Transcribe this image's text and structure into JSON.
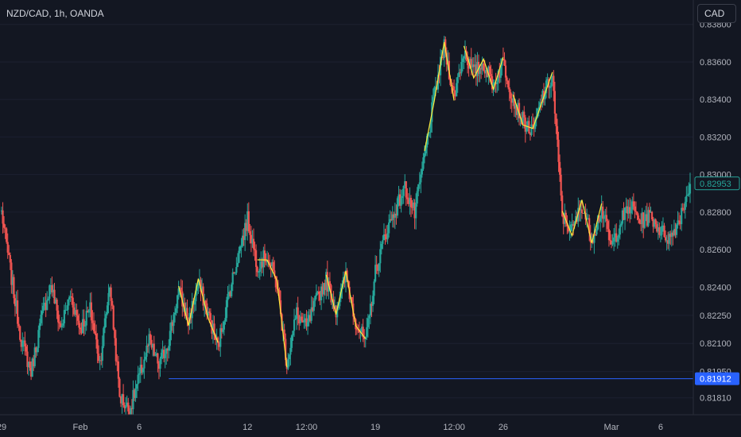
{
  "chart_data": {
    "type": "candlestick",
    "title": "NZD/CAD, 1h, OANDA",
    "currency": "CAD",
    "ylim": [
      0.8172,
      0.8393
    ],
    "y_ticks": [
      "0.83800",
      "0.83600",
      "0.83400",
      "0.83200",
      "0.83000",
      "0.82800",
      "0.82600",
      "0.82400",
      "0.82250",
      "0.82100",
      "0.81950",
      "0.81810"
    ],
    "x_ticks": [
      "29",
      "Feb",
      "6",
      "12",
      "12:00",
      "19",
      "12:00",
      "26",
      "Mar",
      "6"
    ],
    "last_price": "0.82953",
    "horizontal_line": "0.81912",
    "colors": {
      "up": "#26a69a",
      "down": "#ef5350",
      "pattern": "#ffeb3b",
      "hline": "#2962ff",
      "background": "#131722"
    },
    "price_path": [
      [
        "29",
        0.828
      ],
      [
        null,
        0.8245
      ],
      [
        null,
        0.8212
      ],
      [
        null,
        0.8195
      ],
      [
        null,
        0.8222
      ],
      [
        null,
        0.8242
      ],
      [
        null,
        0.8218
      ],
      [
        null,
        0.8236
      ],
      [
        "Feb",
        0.8218
      ],
      [
        null,
        0.8228
      ],
      [
        null,
        0.82
      ],
      [
        null,
        0.8242
      ],
      [
        null,
        0.8182
      ],
      [
        null,
        0.8174
      ],
      [
        "6",
        0.8192
      ],
      [
        null,
        0.8211
      ],
      [
        null,
        0.8198
      ],
      [
        null,
        0.8212
      ],
      [
        null,
        0.8238
      ],
      [
        null,
        0.8222
      ],
      [
        null,
        0.8242
      ],
      [
        null,
        0.8226
      ],
      [
        null,
        0.8208
      ],
      [
        null,
        0.8234
      ],
      [
        null,
        0.8256
      ],
      [
        "12",
        0.8276
      ],
      [
        null,
        0.8252
      ],
      [
        null,
        0.8257
      ],
      [
        null,
        0.8241
      ],
      [
        null,
        0.82
      ],
      [
        null,
        0.8226
      ],
      [
        "12:00",
        0.8218
      ],
      [
        null,
        0.8233
      ],
      [
        null,
        0.8244
      ],
      [
        null,
        0.8228
      ],
      [
        null,
        0.8246
      ],
      [
        null,
        0.8222
      ],
      [
        null,
        0.821
      ],
      [
        "19",
        0.8248
      ],
      [
        null,
        0.8268
      ],
      [
        null,
        0.8281
      ],
      [
        null,
        0.8293
      ],
      [
        null,
        0.8279
      ],
      [
        null,
        0.831
      ],
      [
        null,
        0.8342
      ],
      [
        null,
        0.8368
      ],
      [
        "12:00",
        0.8342
      ],
      [
        null,
        0.8366
      ],
      [
        null,
        0.8354
      ],
      [
        null,
        0.8359
      ],
      [
        null,
        0.8348
      ],
      [
        "26",
        0.836
      ],
      [
        null,
        0.834
      ],
      [
        null,
        0.8329
      ],
      [
        null,
        0.8322
      ],
      [
        null,
        0.8342
      ],
      [
        null,
        0.8352
      ],
      [
        null,
        0.8278
      ],
      [
        null,
        0.827
      ],
      [
        null,
        0.8284
      ],
      [
        null,
        0.8266
      ],
      [
        null,
        0.8282
      ],
      [
        "Mar",
        0.8261
      ],
      [
        null,
        0.8276
      ],
      [
        null,
        0.8283
      ],
      [
        null,
        0.8275
      ],
      [
        null,
        0.8278
      ],
      [
        "6",
        0.827
      ],
      [
        null,
        0.8266
      ],
      [
        null,
        0.8278
      ],
      [
        null,
        0.8295
      ]
    ]
  }
}
